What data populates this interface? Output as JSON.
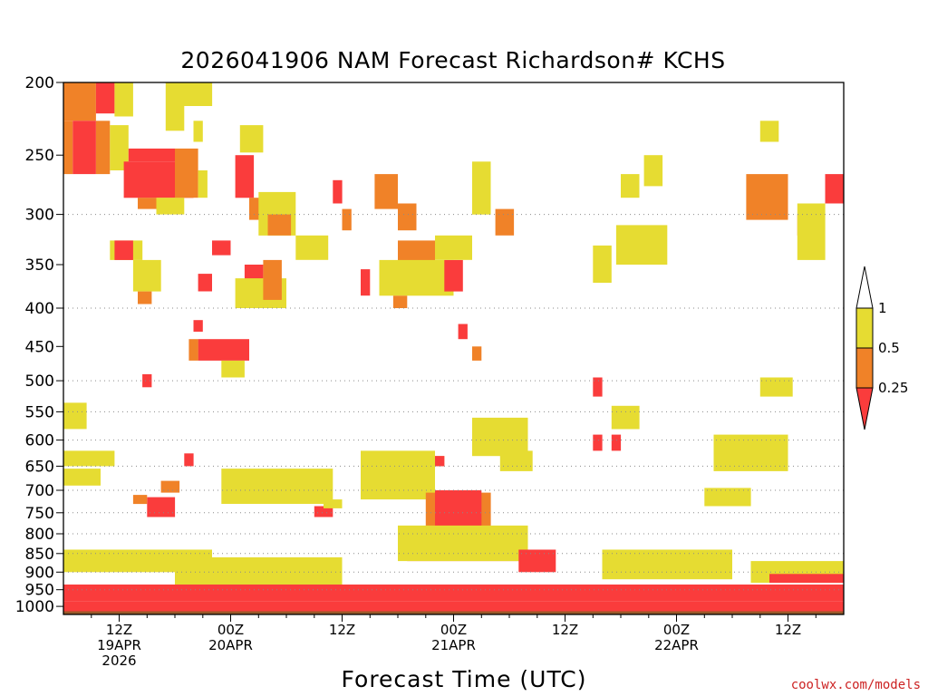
{
  "chart_data": {
    "type": "heatmap",
    "title": "2026041906 NAM Forecast Richardson# KCHS",
    "xlabel": "Forecast Time (UTC)",
    "ylabel": "",
    "credit": "coolwx.com/models",
    "y_axis": {
      "units": "hPa",
      "range": [
        1025,
        200
      ],
      "ticks": [
        200,
        250,
        300,
        350,
        400,
        450,
        500,
        550,
        600,
        650,
        700,
        750,
        800,
        850,
        900,
        950,
        1000
      ],
      "gridlines": [
        300,
        400,
        500,
        550,
        600,
        650,
        700,
        750,
        800,
        850,
        900,
        950
      ]
    },
    "x_axis": {
      "units": "forecast hour",
      "range": [
        0,
        84
      ],
      "ticks": [
        {
          "hour": 6,
          "lines": [
            "12Z",
            "19APR",
            "2026"
          ]
        },
        {
          "hour": 18,
          "lines": [
            "00Z",
            "20APR"
          ]
        },
        {
          "hour": 30,
          "lines": [
            "12Z"
          ]
        },
        {
          "hour": 42,
          "lines": [
            "00Z",
            "21APR"
          ]
        },
        {
          "hour": 54,
          "lines": [
            "12Z"
          ]
        },
        {
          "hour": 66,
          "lines": [
            "00Z",
            "22APR"
          ]
        },
        {
          "hour": 78,
          "lines": [
            "12Z"
          ]
        }
      ]
    },
    "legend": {
      "placement": "right",
      "levels": [
        {
          "label": "",
          "color": "#ffffff",
          "range": "> 1"
        },
        {
          "label": "1",
          "color": "#e6dc32",
          "range": "0.5 - 1"
        },
        {
          "label": "0.5",
          "color": "#f08228",
          "range": "0.25 - 0.5"
        },
        {
          "label": "0.25",
          "color": "#fa3c3c",
          "range": "< 0.25"
        }
      ]
    },
    "colors": {
      "yellow": "#e6dc32",
      "orange": "#f08228",
      "red": "#fa3c3c",
      "ground": "#9a5a2a",
      "grid": "#8a8a8a"
    },
    "regions": [
      {
        "hours": [
          0,
          3.5
        ],
        "p": [
          200,
          225
        ],
        "class": "orange"
      },
      {
        "hours": [
          3.5,
          5.5
        ],
        "p": [
          200,
          220
        ],
        "class": "red"
      },
      {
        "hours": [
          5.5,
          7.5
        ],
        "p": [
          200,
          222
        ],
        "class": "yellow"
      },
      {
        "hours": [
          0,
          1
        ],
        "p": [
          225,
          265
        ],
        "class": "orange"
      },
      {
        "hours": [
          1,
          3.5
        ],
        "p": [
          225,
          265
        ],
        "class": "red"
      },
      {
        "hours": [
          3.5,
          5
        ],
        "p": [
          225,
          265
        ],
        "class": "orange"
      },
      {
        "hours": [
          5,
          7
        ],
        "p": [
          228,
          262
        ],
        "class": "yellow"
      },
      {
        "hours": [
          6.5,
          14
        ],
        "p": [
          255,
          285
        ],
        "class": "red"
      },
      {
        "hours": [
          7,
          12
        ],
        "p": [
          245,
          255
        ],
        "class": "red"
      },
      {
        "hours": [
          12,
          14.5
        ],
        "p": [
          245,
          285
        ],
        "class": "orange"
      },
      {
        "hours": [
          14.5,
          15.5
        ],
        "p": [
          262,
          285
        ],
        "class": "yellow"
      },
      {
        "hours": [
          8,
          10
        ],
        "p": [
          285,
          295
        ],
        "class": "orange"
      },
      {
        "hours": [
          10,
          13
        ],
        "p": [
          285,
          300
        ],
        "class": "yellow"
      },
      {
        "hours": [
          11,
          16
        ],
        "p": [
          200,
          215
        ],
        "class": "yellow"
      },
      {
        "hours": [
          11,
          13
        ],
        "p": [
          215,
          232
        ],
        "class": "yellow"
      },
      {
        "hours": [
          14,
          15
        ],
        "p": [
          225,
          240
        ],
        "class": "yellow"
      },
      {
        "hours": [
          18.5,
          20.5
        ],
        "p": [
          250,
          285
        ],
        "class": "red"
      },
      {
        "hours": [
          19,
          21.5
        ],
        "p": [
          228,
          248
        ],
        "class": "yellow"
      },
      {
        "hours": [
          20,
          22
        ],
        "p": [
          285,
          305
        ],
        "class": "orange"
      },
      {
        "hours": [
          21,
          25
        ],
        "p": [
          280,
          320
        ],
        "class": "yellow"
      },
      {
        "hours": [
          22,
          24.5
        ],
        "p": [
          300,
          320
        ],
        "class": "orange"
      },
      {
        "hours": [
          25,
          28.5
        ],
        "p": [
          320,
          345
        ],
        "class": "yellow"
      },
      {
        "hours": [
          5,
          8.5
        ],
        "p": [
          325,
          345
        ],
        "class": "yellow"
      },
      {
        "hours": [
          5.5,
          7.5
        ],
        "p": [
          325,
          345
        ],
        "class": "red"
      },
      {
        "hours": [
          7.5,
          10.5
        ],
        "p": [
          345,
          380
        ],
        "class": "yellow"
      },
      {
        "hours": [
          8,
          9.5
        ],
        "p": [
          380,
          395
        ],
        "class": "orange"
      },
      {
        "hours": [
          14.5,
          16
        ],
        "p": [
          360,
          380
        ],
        "class": "red"
      },
      {
        "hours": [
          16,
          18
        ],
        "p": [
          325,
          340
        ],
        "class": "red"
      },
      {
        "hours": [
          19.5,
          21.5
        ],
        "p": [
          350,
          400
        ],
        "class": "red"
      },
      {
        "hours": [
          18.5,
          24
        ],
        "p": [
          365,
          400
        ],
        "class": "yellow"
      },
      {
        "hours": [
          21.5,
          23.5
        ],
        "p": [
          345,
          390
        ],
        "class": "orange"
      },
      {
        "hours": [
          14.5,
          20
        ],
        "p": [
          440,
          470
        ],
        "class": "red"
      },
      {
        "hours": [
          13.5,
          14.5
        ],
        "p": [
          440,
          470
        ],
        "class": "orange"
      },
      {
        "hours": [
          17,
          19.5
        ],
        "p": [
          470,
          495
        ],
        "class": "yellow"
      },
      {
        "hours": [
          14,
          15
        ],
        "p": [
          415,
          430
        ],
        "class": "red"
      },
      {
        "hours": [
          33.5,
          36
        ],
        "p": [
          265,
          295
        ],
        "class": "orange"
      },
      {
        "hours": [
          36,
          38
        ],
        "p": [
          290,
          315
        ],
        "class": "orange"
      },
      {
        "hours": [
          36,
          40
        ],
        "p": [
          325,
          360
        ],
        "class": "orange"
      },
      {
        "hours": [
          34,
          42
        ],
        "p": [
          345,
          385
        ],
        "class": "yellow"
      },
      {
        "hours": [
          35.5,
          37
        ],
        "p": [
          385,
          400
        ],
        "class": "orange"
      },
      {
        "hours": [
          41,
          43
        ],
        "p": [
          345,
          380
        ],
        "class": "red"
      },
      {
        "hours": [
          40,
          44
        ],
        "p": [
          320,
          345
        ],
        "class": "yellow"
      },
      {
        "hours": [
          32,
          33
        ],
        "p": [
          355,
          385
        ],
        "class": "red"
      },
      {
        "hours": [
          29,
          30
        ],
        "p": [
          270,
          290
        ],
        "class": "red"
      },
      {
        "hours": [
          30,
          31
        ],
        "p": [
          295,
          315
        ],
        "class": "orange"
      },
      {
        "hours": [
          42.5,
          43.5
        ],
        "p": [
          420,
          440
        ],
        "class": "red"
      },
      {
        "hours": [
          44,
          45
        ],
        "p": [
          450,
          470
        ],
        "class": "orange"
      },
      {
        "hours": [
          46.5,
          48.5
        ],
        "p": [
          295,
          320
        ],
        "class": "orange"
      },
      {
        "hours": [
          44,
          46
        ],
        "p": [
          255,
          300
        ],
        "class": "yellow"
      },
      {
        "hours": [
          39,
          41
        ],
        "p": [
          630,
          650
        ],
        "class": "orange"
      },
      {
        "hours": [
          40,
          41
        ],
        "p": [
          630,
          650
        ],
        "class": "red"
      },
      {
        "hours": [
          34,
          37
        ],
        "p": [
          680,
          715
        ],
        "class": "orange"
      },
      {
        "hours": [
          32,
          40
        ],
        "p": [
          620,
          720
        ],
        "class": "yellow"
      },
      {
        "hours": [
          45,
          49
        ],
        "p": [
          590,
          620
        ],
        "class": "orange"
      },
      {
        "hours": [
          44,
          50
        ],
        "p": [
          560,
          630
        ],
        "class": "yellow"
      },
      {
        "hours": [
          18,
          28
        ],
        "p": [
          660,
          720
        ],
        "class": "orange"
      },
      {
        "hours": [
          17,
          29
        ],
        "p": [
          655,
          730
        ],
        "class": "yellow"
      },
      {
        "hours": [
          27,
          29
        ],
        "p": [
          735,
          760
        ],
        "class": "red"
      },
      {
        "hours": [
          28,
          30
        ],
        "p": [
          720,
          740
        ],
        "class": "yellow"
      },
      {
        "hours": [
          9,
          12
        ],
        "p": [
          715,
          760
        ],
        "class": "red"
      },
      {
        "hours": [
          7.5,
          9
        ],
        "p": [
          710,
          730
        ],
        "class": "orange"
      },
      {
        "hours": [
          10.5,
          12.5
        ],
        "p": [
          680,
          705
        ],
        "class": "orange"
      },
      {
        "hours": [
          13,
          14
        ],
        "p": [
          625,
          650
        ],
        "class": "red"
      },
      {
        "hours": [
          0,
          5.5
        ],
        "p": [
          620,
          650
        ],
        "class": "yellow"
      },
      {
        "hours": [
          0,
          4
        ],
        "p": [
          655,
          690
        ],
        "class": "yellow"
      },
      {
        "hours": [
          0,
          2.5
        ],
        "p": [
          535,
          580
        ],
        "class": "yellow"
      },
      {
        "hours": [
          8.5,
          9.5
        ],
        "p": [
          490,
          510
        ],
        "class": "red"
      },
      {
        "hours": [
          60.5,
          64
        ],
        "p": [
          320,
          345
        ],
        "class": "red"
      },
      {
        "hours": [
          59.5,
          65
        ],
        "p": [
          310,
          350
        ],
        "class": "yellow"
      },
      {
        "hours": [
          57,
          59
        ],
        "p": [
          330,
          370
        ],
        "class": "yellow"
      },
      {
        "hours": [
          74,
          77
        ],
        "p": [
          270,
          300
        ],
        "class": "red"
      },
      {
        "hours": [
          73.5,
          78
        ],
        "p": [
          265,
          305
        ],
        "class": "orange"
      },
      {
        "hours": [
          75,
          77
        ],
        "p": [
          225,
          240
        ],
        "class": "yellow"
      },
      {
        "hours": [
          82,
          84
        ],
        "p": [
          265,
          290
        ],
        "class": "red"
      },
      {
        "hours": [
          79,
          80
        ],
        "p": [
          300,
          320
        ],
        "class": "orange"
      },
      {
        "hours": [
          79,
          82
        ],
        "p": [
          290,
          345
        ],
        "class": "yellow"
      },
      {
        "hours": [
          60,
          62
        ],
        "p": [
          265,
          285
        ],
        "class": "yellow"
      },
      {
        "hours": [
          62.5,
          64.5
        ],
        "p": [
          250,
          275
        ],
        "class": "yellow"
      },
      {
        "hours": [
          72.5,
          76
        ],
        "p": [
          600,
          625
        ],
        "class": "orange"
      },
      {
        "hours": [
          70,
          78
        ],
        "p": [
          590,
          660
        ],
        "class": "yellow"
      },
      {
        "hours": [
          70,
          73
        ],
        "p": [
          700,
          720
        ],
        "class": "orange"
      },
      {
        "hours": [
          69,
          74
        ],
        "p": [
          695,
          735
        ],
        "class": "yellow"
      },
      {
        "hours": [
          75,
          78.5
        ],
        "p": [
          495,
          525
        ],
        "class": "yellow"
      },
      {
        "hours": [
          59,
          62
        ],
        "p": [
          540,
          580
        ],
        "class": "yellow"
      },
      {
        "hours": [
          57,
          58
        ],
        "p": [
          590,
          620
        ],
        "class": "red"
      },
      {
        "hours": [
          59,
          60
        ],
        "p": [
          590,
          620
        ],
        "class": "red"
      },
      {
        "hours": [
          57,
          58
        ],
        "p": [
          495,
          525
        ],
        "class": "red"
      },
      {
        "hours": [
          47,
          50.5
        ],
        "p": [
          620,
          660
        ],
        "class": "yellow"
      },
      {
        "hours": [
          39,
          46
        ],
        "p": [
          705,
          790
        ],
        "class": "orange"
      },
      {
        "hours": [
          40,
          45
        ],
        "p": [
          700,
          800
        ],
        "class": "red"
      },
      {
        "hours": [
          37,
          49
        ],
        "p": [
          790,
          870
        ],
        "class": "red"
      },
      {
        "hours": [
          36,
          50
        ],
        "p": [
          780,
          870
        ],
        "class": "yellow"
      },
      {
        "hours": [
          49,
          53
        ],
        "p": [
          840,
          900
        ],
        "class": "red"
      },
      {
        "hours": [
          60,
          70
        ],
        "p": [
          850,
          880
        ],
        "class": "red"
      },
      {
        "hours": [
          61,
          69
        ],
        "p": [
          880,
          910
        ],
        "class": "red"
      },
      {
        "hours": [
          58,
          72
        ],
        "p": [
          840,
          920
        ],
        "class": "yellow"
      },
      {
        "hours": [
          74,
          84
        ],
        "p": [
          870,
          930
        ],
        "class": "yellow"
      },
      {
        "hours": [
          76,
          84
        ],
        "p": [
          905,
          930
        ],
        "class": "red"
      },
      {
        "hours": [
          2,
          14
        ],
        "p": [
          850,
          870
        ],
        "class": "red"
      },
      {
        "hours": [
          0,
          16
        ],
        "p": [
          840,
          900
        ],
        "class": "yellow"
      },
      {
        "hours": [
          14,
          28
        ],
        "p": [
          870,
          920
        ],
        "class": "red"
      },
      {
        "hours": [
          12,
          30
        ],
        "p": [
          860,
          940
        ],
        "class": "yellow"
      },
      {
        "hours": [
          0,
          84
        ],
        "p": [
          935,
          985
        ],
        "class": "red"
      },
      {
        "hours": [
          0,
          84
        ],
        "p": [
          985,
          1015
        ],
        "class": "red"
      },
      {
        "hours": [
          0,
          84
        ],
        "p": [
          1015,
          1025
        ],
        "class": "ground"
      }
    ]
  }
}
